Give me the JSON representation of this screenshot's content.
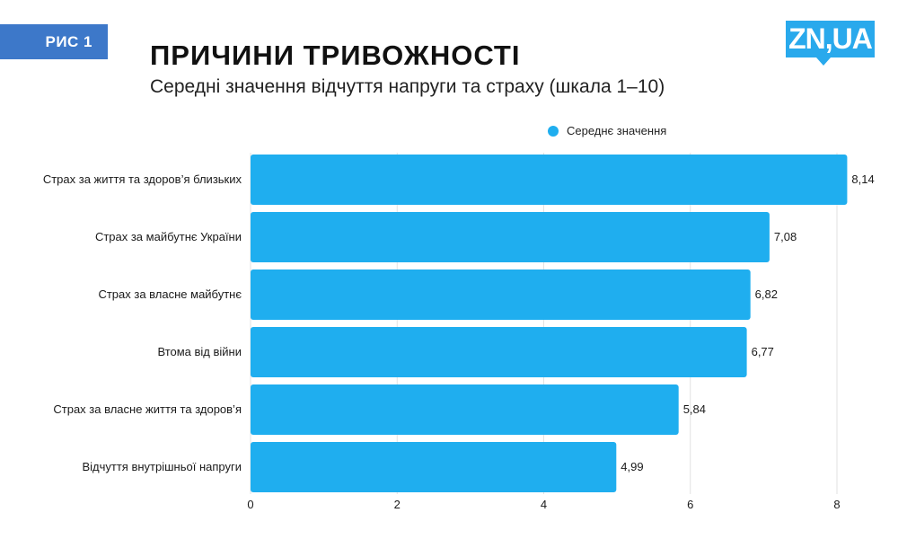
{
  "figure_badge": "РИС 1",
  "logo_text": "ZN,UA",
  "colors": {
    "bar": "#1faeef",
    "badge": "#3d78c9",
    "logo": "#29a9ec",
    "grid": "#e2e2e2"
  },
  "chart_data": {
    "type": "bar",
    "orientation": "horizontal",
    "title": "ПРИЧИНИ ТРИВОЖНОСТІ",
    "subtitle": "Середні значення відчуття напруги та страху (шкала 1–10)",
    "categories": [
      "Страх за життя та здоров’я близьких",
      "Страх за майбутнє України",
      "Страх за власне майбутнє",
      "Втома від війни",
      "Страх за власне життя та здоров’я",
      "Відчуття внутрішньої напруги"
    ],
    "series": [
      {
        "name": "Середнє значення",
        "values": [
          8.14,
          7.08,
          6.82,
          6.77,
          5.84,
          4.99
        ],
        "value_labels": [
          "8,14",
          "7,08",
          "6,82",
          "6,77",
          "5,84",
          "4,99"
        ]
      }
    ],
    "xlim": [
      0,
      8.2
    ],
    "xticks": [
      0,
      2,
      4,
      6,
      8
    ],
    "xtick_labels": [
      "0",
      "2",
      "4",
      "6",
      "8"
    ],
    "grid": "vertical",
    "legend_position": "top-right"
  }
}
